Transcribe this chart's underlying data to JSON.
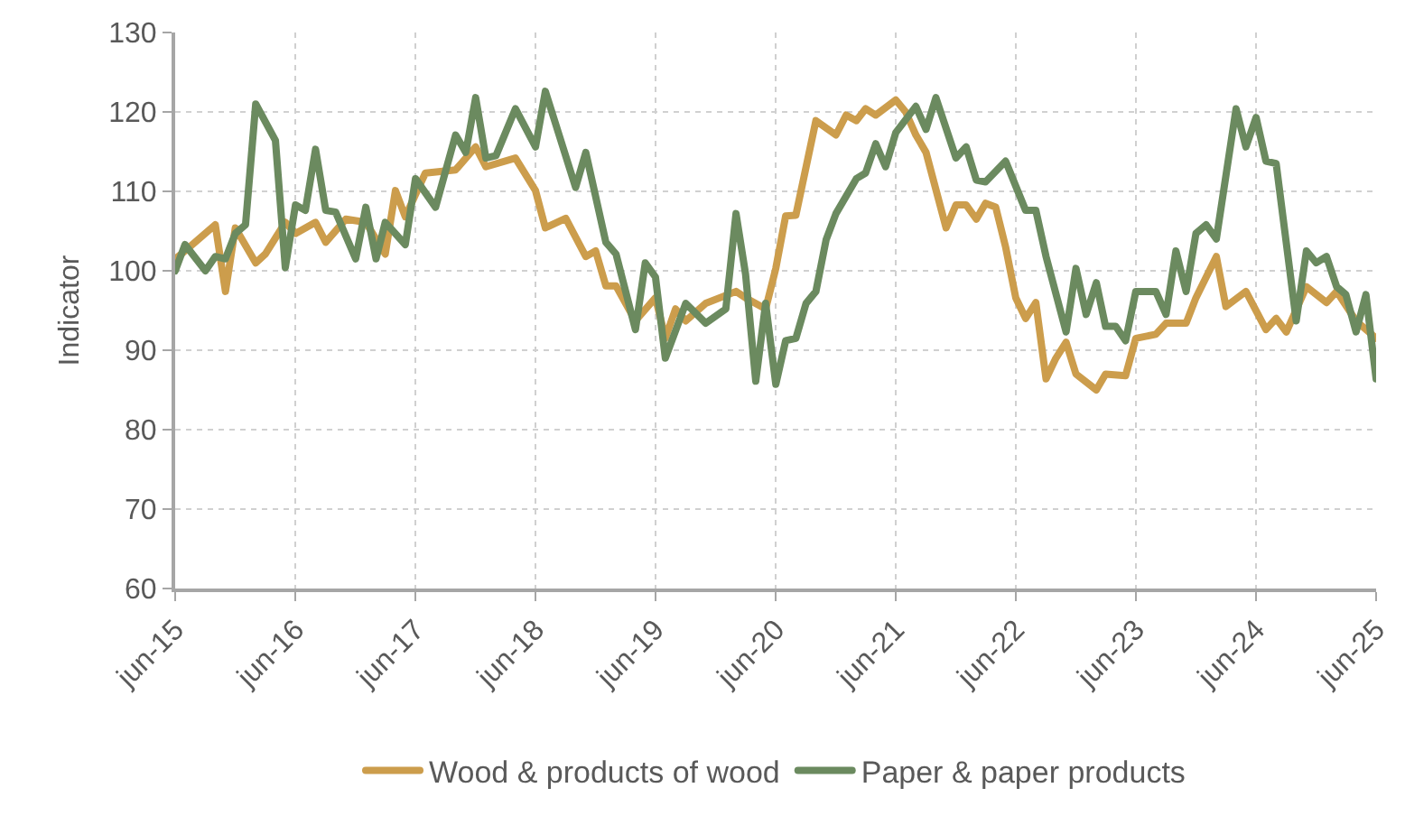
{
  "chart_data": {
    "type": "line",
    "ylabel": "Indicator",
    "xlim": [
      "2015-06",
      "2025-06"
    ],
    "xticks": [
      {
        "value": "2015-06",
        "label": "jun-15"
      },
      {
        "value": "2016-06",
        "label": "jun-16"
      },
      {
        "value": "2017-06",
        "label": "jun-17"
      },
      {
        "value": "2018-06",
        "label": "jun-18"
      },
      {
        "value": "2019-06",
        "label": "jun-19"
      },
      {
        "value": "2020-06",
        "label": "jun-20"
      },
      {
        "value": "2021-06",
        "label": "jun-21"
      },
      {
        "value": "2022-06",
        "label": "jun-22"
      },
      {
        "value": "2023-06",
        "label": "jun-23"
      },
      {
        "value": "2024-06",
        "label": "jun-24"
      },
      {
        "value": "2025-06",
        "label": "jun-25"
      }
    ],
    "ylim": [
      60,
      130
    ],
    "yticks": [
      60,
      70,
      80,
      90,
      100,
      110,
      120,
      130
    ],
    "grid": true,
    "legend": "bottom",
    "marker": "none",
    "line_style": "solid",
    "series": [
      {
        "name": "Wood & products of wood",
        "color": "#cc9d4c",
        "x": [
          "2015-06",
          "2015-07",
          "2015-10",
          "2015-11",
          "2015-12",
          "2016-02",
          "2016-03",
          "2016-05",
          "2016-06",
          "2016-08",
          "2016-09",
          "2016-11",
          "2017-01",
          "2017-03",
          "2017-04",
          "2017-05",
          "2017-07",
          "2017-10",
          "2017-12",
          "2018-01",
          "2018-04",
          "2018-06",
          "2018-07",
          "2018-09",
          "2018-11",
          "2018-12",
          "2019-01",
          "2019-02",
          "2019-04",
          "2019-06",
          "2019-07",
          "2019-08",
          "2019-09",
          "2019-11",
          "2020-02",
          "2020-03",
          "2020-05",
          "2020-06",
          "2020-07",
          "2020-08",
          "2020-10",
          "2020-12",
          "2021-01",
          "2021-02",
          "2021-03",
          "2021-04",
          "2021-06",
          "2021-07",
          "2021-08",
          "2021-09",
          "2021-11",
          "2021-12",
          "2022-01",
          "2022-02",
          "2022-03",
          "2022-04",
          "2022-05",
          "2022-06",
          "2022-07",
          "2022-08",
          "2022-09",
          "2022-10",
          "2022-11",
          "2022-12",
          "2023-02",
          "2023-03",
          "2023-05",
          "2023-06",
          "2023-08",
          "2023-09",
          "2023-11",
          "2023-12",
          "2024-02",
          "2024-03",
          "2024-05",
          "2024-07",
          "2024-08",
          "2024-09",
          "2024-11",
          "2025-01",
          "2025-02",
          "2025-04",
          "2025-06"
        ],
        "values": [
          101.5,
          102.5,
          105.8,
          97.4,
          105.4,
          101,
          102.1,
          106.1,
          104.7,
          106.1,
          103.6,
          106.5,
          106.1,
          102.1,
          110.1,
          106.8,
          112.3,
          112.7,
          115.6,
          113.1,
          114.2,
          110.1,
          105.4,
          106.6,
          101.8,
          102.5,
          98.1,
          98.1,
          93.7,
          96.6,
          91.5,
          95.2,
          93.7,
          95.9,
          97.4,
          96.6,
          95.2,
          100.3,
          106.9,
          107,
          118.9,
          117.1,
          119.6,
          118.9,
          120.4,
          119.6,
          121.5,
          120,
          117.1,
          114.9,
          105.4,
          108.3,
          108.3,
          106.5,
          108.5,
          108,
          103,
          96.6,
          94,
          96,
          86.4,
          89,
          91,
          87,
          85,
          87,
          86.8,
          91.5,
          92,
          93.4,
          93.4,
          96.6,
          101.8,
          95.5,
          97.4,
          92.6,
          94,
          92.3,
          98,
          96,
          97.4,
          93.7,
          91.5
        ]
      },
      {
        "name": "Paper & paper products",
        "color": "#6b8a5f",
        "x": [
          "2015-06",
          "2015-07",
          "2015-09",
          "2015-10",
          "2015-11",
          "2015-12",
          "2016-01",
          "2016-02",
          "2016-04",
          "2016-05",
          "2016-06",
          "2016-07",
          "2016-08",
          "2016-09",
          "2016-10",
          "2016-12",
          "2017-01",
          "2017-02",
          "2017-03",
          "2017-05",
          "2017-06",
          "2017-08",
          "2017-10",
          "2017-11",
          "2017-12",
          "2018-01",
          "2018-02",
          "2018-04",
          "2018-06",
          "2018-07",
          "2018-10",
          "2018-11",
          "2019-01",
          "2019-02",
          "2019-04",
          "2019-05",
          "2019-06",
          "2019-07",
          "2019-09",
          "2019-11",
          "2020-01",
          "2020-02",
          "2020-03",
          "2020-04",
          "2020-05",
          "2020-06",
          "2020-07",
          "2020-08",
          "2020-09",
          "2020-10",
          "2020-11",
          "2020-12",
          "2021-02",
          "2021-03",
          "2021-04",
          "2021-05",
          "2021-06",
          "2021-08",
          "2021-09",
          "2021-10",
          "2021-12",
          "2022-01",
          "2022-02",
          "2022-03",
          "2022-05",
          "2022-07",
          "2022-08",
          "2022-09",
          "2022-11",
          "2022-12",
          "2023-01",
          "2023-02",
          "2023-03",
          "2023-04",
          "2023-05",
          "2023-06",
          "2023-08",
          "2023-09",
          "2023-10",
          "2023-11",
          "2023-12",
          "2024-01",
          "2024-02",
          "2024-04",
          "2024-05",
          "2024-06",
          "2024-07",
          "2024-08",
          "2024-10",
          "2024-11",
          "2024-12",
          "2025-01",
          "2025-02",
          "2025-03",
          "2025-04",
          "2025-05",
          "2025-06"
        ],
        "values": [
          100,
          103.3,
          100,
          101.8,
          101.5,
          104.7,
          105.8,
          121,
          116.4,
          100.4,
          108.3,
          107.6,
          115.3,
          107.6,
          107.4,
          101.5,
          108,
          101.5,
          106.1,
          103.3,
          111.6,
          108,
          117.1,
          114.9,
          121.8,
          114.2,
          114.5,
          120.4,
          115.6,
          122.6,
          110.5,
          114.9,
          103.6,
          102.1,
          92.6,
          101,
          99.2,
          89,
          95.9,
          93.4,
          95.2,
          107.2,
          99.6,
          86.1,
          95.9,
          85.7,
          91.2,
          91.5,
          95.9,
          97.4,
          103.9,
          107.2,
          111.6,
          112.3,
          116,
          113.1,
          117.4,
          120.7,
          117.8,
          121.8,
          114.2,
          115.6,
          111.4,
          111.2,
          113.8,
          107.6,
          107.6,
          101.8,
          92.3,
          100.3,
          94.5,
          98.5,
          93,
          93,
          91.2,
          97.4,
          97.4,
          94.5,
          102.5,
          97.4,
          104.7,
          105.8,
          104,
          120.4,
          115.6,
          119.3,
          113.8,
          113.5,
          93.7,
          102.5,
          101,
          101.8,
          98,
          97,
          92.3,
          97,
          86.4
        ]
      }
    ]
  }
}
